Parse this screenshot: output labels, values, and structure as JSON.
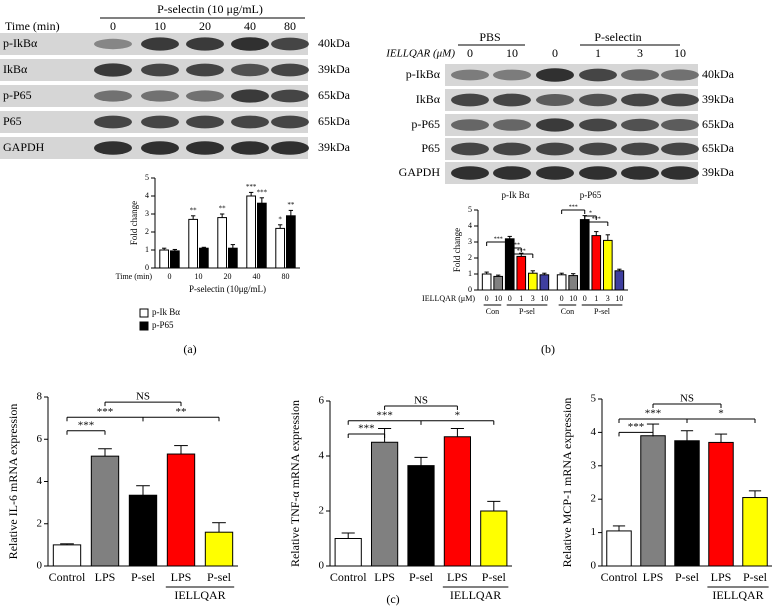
{
  "panel_labels": [
    "(a)",
    "(b)",
    "(c)"
  ],
  "blot_a": {
    "header": "P-selectin (10 μg/mL)",
    "time_label": "Time (min)",
    "lanes": [
      "0",
      "10",
      "20",
      "40",
      "80"
    ],
    "rows": [
      {
        "name": "p-IkBα",
        "size": "40kDa"
      },
      {
        "name": "IkBα",
        "size": "39kDa"
      },
      {
        "name": "p-P65",
        "size": "65kDa"
      },
      {
        "name": "P65",
        "size": "65kDa"
      },
      {
        "name": "GAPDH",
        "size": "39kDa"
      }
    ]
  },
  "blot_b": {
    "groups": [
      "PBS",
      "P-selectin"
    ],
    "dose_label": "IELLQAR (μM)",
    "lanes": [
      "0",
      "10",
      "0",
      "1",
      "3",
      "10"
    ],
    "rows": [
      {
        "name": "p-IkBα",
        "size": "40kDa"
      },
      {
        "name": "IkBα",
        "size": "39kDa"
      },
      {
        "name": "p-P65",
        "size": "65kDa"
      },
      {
        "name": "P65",
        "size": "65kDa"
      },
      {
        "name": "GAPDH",
        "size": "39kDa"
      }
    ]
  },
  "chart_data": [
    {
      "type": "grouped_bar",
      "ylabel": "Fold change",
      "x_title": "Time (min)",
      "xlabel": "P-selectin (10μg/mL)",
      "categories": [
        "0",
        "10",
        "20",
        "40",
        "80"
      ],
      "ylim": [
        0,
        5
      ],
      "yticks": [
        0,
        1,
        2,
        3,
        4,
        5
      ],
      "series": [
        {
          "name": "p-Ik Bα",
          "color": "#ffffff",
          "values": [
            1.0,
            2.7,
            2.8,
            4.0,
            2.2
          ],
          "errors": [
            0.1,
            0.2,
            0.2,
            0.2,
            0.2
          ],
          "annotations": [
            null,
            "**",
            "**",
            "***",
            "*"
          ]
        },
        {
          "name": "p-P65",
          "color": "#000000",
          "values": [
            0.95,
            1.1,
            1.1,
            3.6,
            2.9
          ],
          "errors": [
            0.08,
            0.05,
            0.2,
            0.3,
            0.3
          ],
          "annotations": [
            null,
            null,
            null,
            "***",
            "**"
          ]
        }
      ]
    },
    {
      "type": "panel_bar",
      "ylabel": "Fold change",
      "xlabel": "IELLQAR (μM)",
      "categories": [
        "0",
        "10",
        "0",
        "1",
        "3",
        "10"
      ],
      "category_groups": [
        "Con",
        "P-sel"
      ],
      "colors": [
        "#ffffff",
        "#808080",
        "#000000",
        "#ff0000",
        "#ffff00",
        "#3f3f9f"
      ],
      "ylim": [
        0,
        5
      ],
      "yticks": [
        0,
        1,
        2,
        3,
        4,
        5
      ],
      "series": [
        {
          "name": "p-Ik Bα",
          "values": [
            1.0,
            0.85,
            3.2,
            2.1,
            1.05,
            0.95
          ],
          "errors": [
            0.12,
            0.08,
            0.15,
            0.2,
            0.15,
            0.1
          ],
          "annotations": [
            "***",
            "***",
            "***"
          ]
        },
        {
          "name": "p-P65",
          "values": [
            0.95,
            0.9,
            4.4,
            3.4,
            3.1,
            1.2
          ],
          "errors": [
            0.1,
            0.12,
            0.25,
            0.25,
            0.35,
            0.1
          ],
          "annotations": [
            "***",
            "*",
            "***"
          ]
        }
      ]
    },
    {
      "type": "bar",
      "ylabel": "Relative IL-6 mRNA expression",
      "categories": [
        "Control",
        "LPS",
        "P-sel",
        "LPS",
        "P-sel"
      ],
      "group_label": "IELLQAR",
      "colors": [
        "#ffffff",
        "#808080",
        "#000000",
        "#ff0000",
        "#ffff00"
      ],
      "values": [
        1.0,
        5.2,
        3.35,
        5.3,
        1.6
      ],
      "errors": [
        0.05,
        0.35,
        0.45,
        0.4,
        0.45
      ],
      "annotations": [
        "***",
        "***",
        "NS",
        "**"
      ],
      "ylim": [
        0,
        8
      ],
      "yticks": [
        0,
        2,
        4,
        6,
        8
      ]
    },
    {
      "type": "bar",
      "ylabel": "Relative TNF-α mRNA expression",
      "categories": [
        "Control",
        "LPS",
        "P-sel",
        "LPS",
        "P-sel"
      ],
      "group_label": "IELLQAR",
      "colors": [
        "#ffffff",
        "#808080",
        "#000000",
        "#ff0000",
        "#ffff00"
      ],
      "values": [
        1.0,
        4.5,
        3.65,
        4.7,
        2.0
      ],
      "errors": [
        0.2,
        0.5,
        0.3,
        0.3,
        0.35
      ],
      "annotations": [
        "***",
        "***",
        "NS",
        "*"
      ],
      "ylim": [
        0,
        6
      ],
      "yticks": [
        0,
        2,
        4,
        6
      ]
    },
    {
      "type": "bar",
      "ylabel": "Relative MCP-1 mRNA expression",
      "categories": [
        "Control",
        "LPS",
        "P-sel",
        "LPS",
        "P-sel"
      ],
      "group_label": "IELLQAR",
      "colors": [
        "#ffffff",
        "#808080",
        "#000000",
        "#ff0000",
        "#ffff00"
      ],
      "values": [
        1.05,
        3.9,
        3.75,
        3.7,
        2.05
      ],
      "errors": [
        0.15,
        0.35,
        0.3,
        0.25,
        0.2
      ],
      "annotations": [
        "***",
        "***",
        "NS",
        "*"
      ],
      "ylim": [
        0,
        5
      ],
      "yticks": [
        0,
        1,
        2,
        3,
        4,
        5
      ]
    }
  ]
}
